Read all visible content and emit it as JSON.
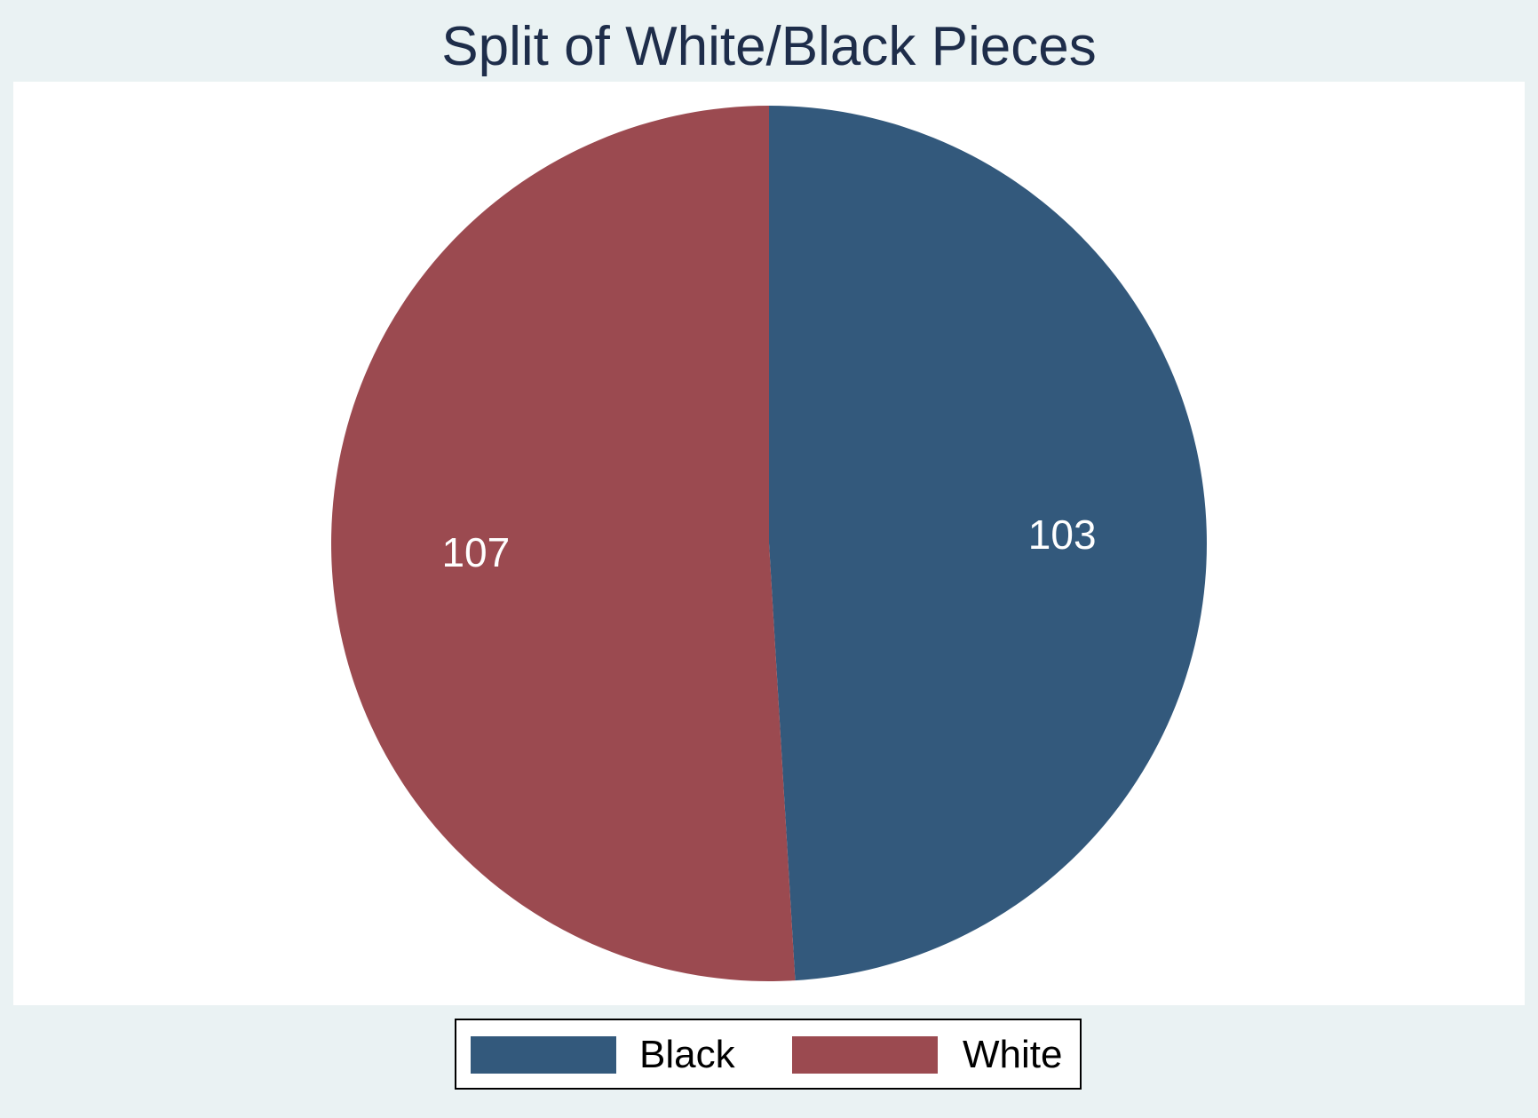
{
  "chart_data": {
    "type": "pie",
    "title": "Split of White/Black Pieces",
    "slices": [
      {
        "label": "Black",
        "value": 103,
        "color": "#33597C"
      },
      {
        "label": "White",
        "value": 107,
        "color": "#9B4A50"
      }
    ],
    "legend": {
      "placement": "bottom",
      "entries": [
        "Black",
        "White"
      ]
    },
    "data_labels": [
      "103",
      "107"
    ],
    "start_direction": "top",
    "direction": "clockwise"
  }
}
